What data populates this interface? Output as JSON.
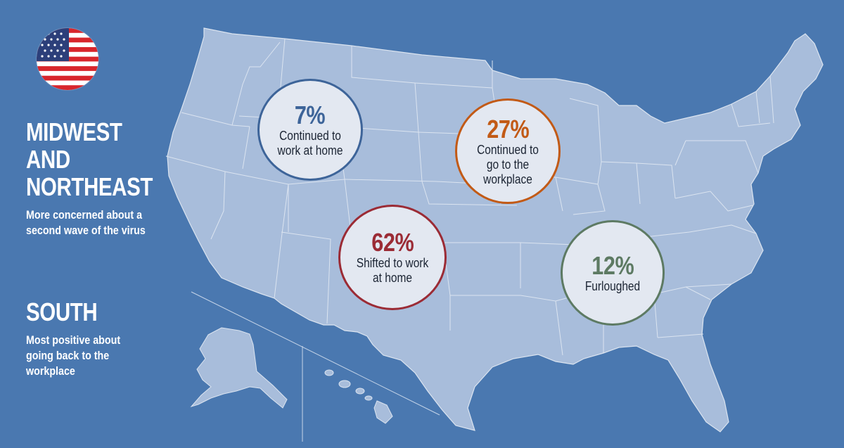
{
  "colors": {
    "background": "#4a78b0",
    "land": "#a8bddb",
    "state_border": "#dbe4f0",
    "circle_fill": "#e3e8f1",
    "blue": "#3d6499",
    "orange": "#c25a16",
    "red": "#9b2b35",
    "green": "#5d7a63"
  },
  "flag": {
    "icon": "us-flag-icon"
  },
  "regions": [
    {
      "title": "MIDWEST\nAND\nNORTHEAST",
      "description": "More concerned about a second wave of the virus"
    },
    {
      "title": "SOUTH",
      "description": "Most positive about going back to the workplace"
    }
  ],
  "stats": [
    {
      "value": "7%",
      "label": "Continued to work at home",
      "color": "blue"
    },
    {
      "value": "27%",
      "label": "Continued to go to the workplace",
      "color": "orange"
    },
    {
      "value": "62%",
      "label": "Shifted to work at home",
      "color": "red"
    },
    {
      "value": "12%",
      "label": "Furloughed",
      "color": "green"
    }
  ]
}
